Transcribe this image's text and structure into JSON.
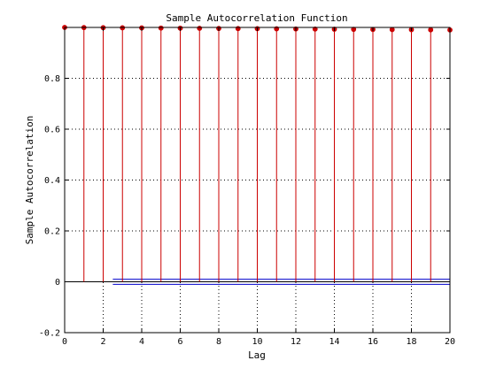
{
  "chart_data": {
    "type": "stem",
    "title": "Sample Autocorrelation Function",
    "xlabel": "Lag",
    "ylabel": "Sample Autocorrelation",
    "xlim": [
      0,
      20
    ],
    "ylim": [
      -0.2,
      1.0
    ],
    "xticks": [
      0,
      2,
      4,
      6,
      8,
      10,
      12,
      14,
      16,
      18,
      20
    ],
    "xtick_labels": [
      "0",
      "2",
      "4",
      "6",
      "8",
      "10",
      "12",
      "14",
      "16",
      "18",
      "20"
    ],
    "yticks": [
      -0.2,
      0,
      0.2,
      0.4,
      0.6,
      0.8
    ],
    "ytick_labels": [
      "-0.2",
      "0",
      "0.2",
      "0.4",
      "0.6",
      "0.8"
    ],
    "grid": true,
    "baseline": 0,
    "lags": [
      0,
      1,
      2,
      3,
      4,
      5,
      6,
      7,
      8,
      9,
      10,
      11,
      12,
      13,
      14,
      15,
      16,
      17,
      18,
      19,
      20
    ],
    "values": [
      1.0,
      0.9995,
      0.999,
      0.9985,
      0.998,
      0.9975,
      0.997,
      0.9965,
      0.996,
      0.9955,
      0.995,
      0.9945,
      0.994,
      0.9935,
      0.993,
      0.9925,
      0.992,
      0.9915,
      0.991,
      0.9905,
      0.99
    ],
    "confidence_bounds": {
      "upper": 0.01,
      "lower": -0.01,
      "from_lag": 2.5,
      "to_lag": 20
    },
    "colors": {
      "stem": "#cc0000",
      "marker": "#cc0000",
      "bounds": "#0000cc",
      "baseline": "#000000",
      "grid": "#000000",
      "axes": "#000000"
    }
  }
}
